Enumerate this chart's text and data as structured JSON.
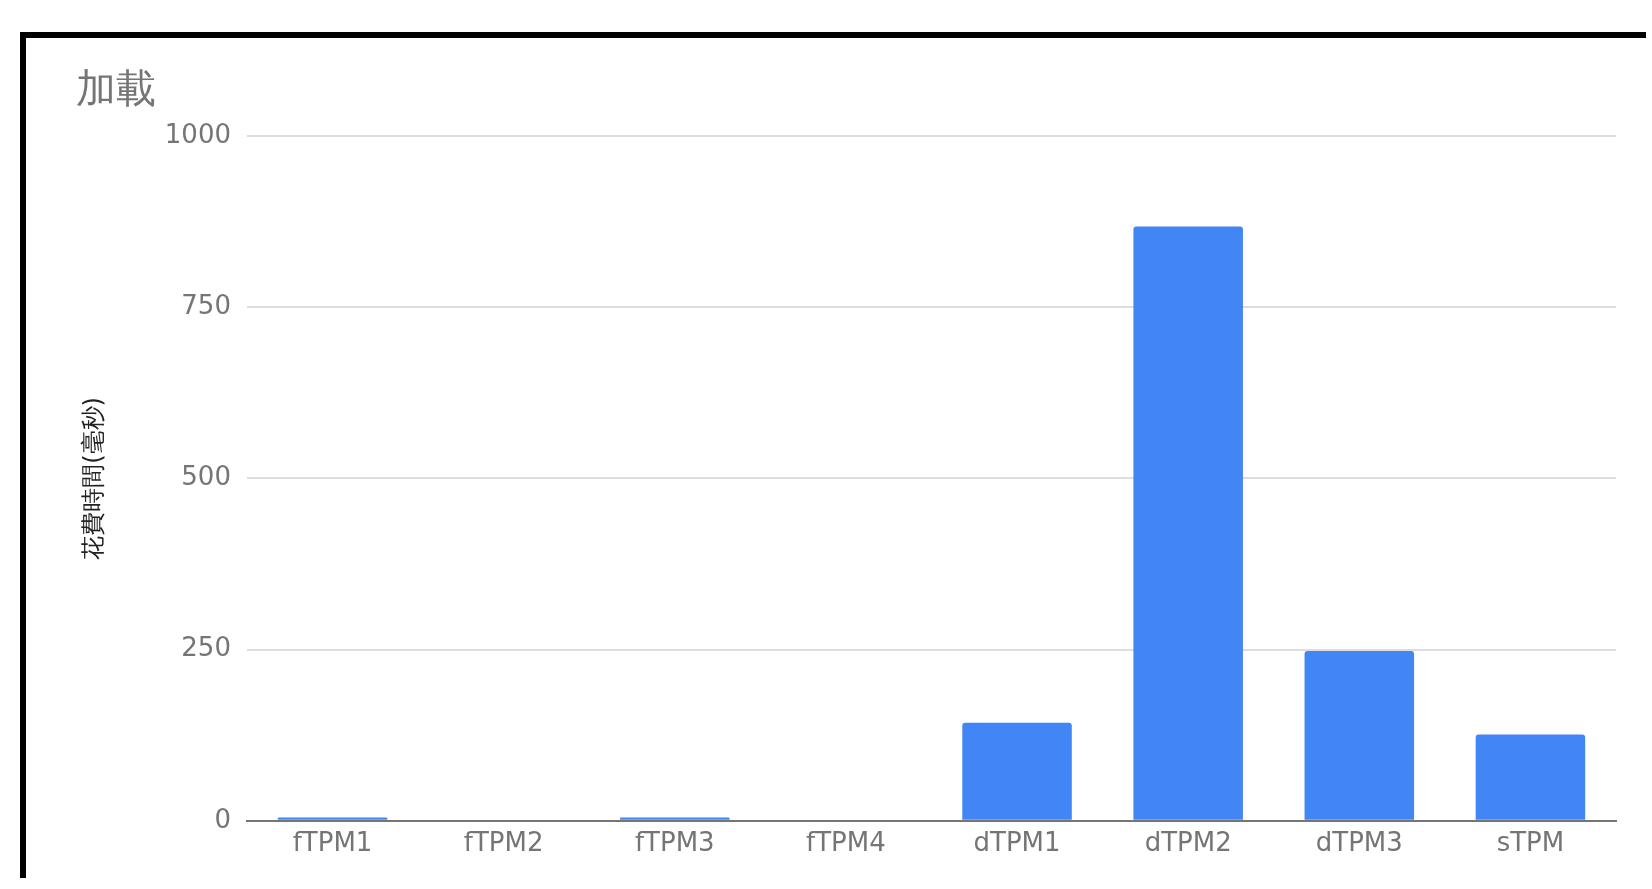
{
  "chart_data": {
    "type": "bar",
    "title": "加載",
    "ylabel": "花費時間(毫秒)",
    "categories": [
      "fTPM1",
      "fTPM2",
      "fTPM3",
      "fTPM4",
      "dTPM1",
      "dTPM2",
      "dTPM3",
      "sTPM"
    ],
    "values": [
      5,
      0,
      5,
      0,
      143,
      868,
      248,
      126
    ],
    "color": "#4285f4",
    "ylim": [
      0,
      1000
    ],
    "yticks": [
      0,
      250,
      500,
      750,
      1000
    ],
    "grid": "y",
    "legend": false
  }
}
